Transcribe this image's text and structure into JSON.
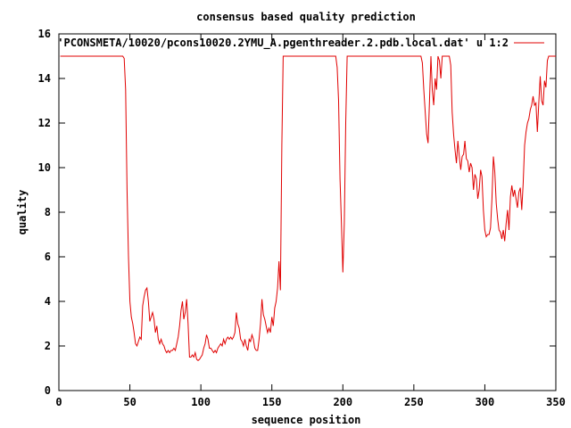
{
  "chart_data": {
    "type": "line",
    "title": "consensus based quality prediction",
    "xlabel": "sequence position",
    "ylabel": "quality",
    "xlim": [
      0,
      350
    ],
    "ylim": [
      0,
      16
    ],
    "x_ticks": [
      0,
      50,
      100,
      150,
      200,
      250,
      300,
      350
    ],
    "y_ticks": [
      0,
      2,
      4,
      6,
      8,
      10,
      12,
      14,
      16
    ],
    "x_tick_labels": [
      "0",
      "50",
      "100",
      "150",
      "200",
      "250",
      "300",
      "350"
    ],
    "y_tick_labels": [
      "0",
      "2",
      "4",
      "6",
      "8",
      "10",
      "12",
      "14",
      "16"
    ],
    "grid": false,
    "legend_position": "top-right",
    "series": [
      {
        "name": "'PCONSMETA/10020/pcons10020.2YMU_A.pgenthreader.2.pdb.local.dat' u 1:2",
        "color": "#e00000",
        "points": [
          [
            1,
            15
          ],
          [
            20,
            15
          ],
          [
            40,
            15
          ],
          [
            45,
            15
          ],
          [
            46,
            14.9
          ],
          [
            47,
            13.5
          ],
          [
            48,
            9
          ],
          [
            49,
            6
          ],
          [
            50,
            4
          ],
          [
            51,
            3.3
          ],
          [
            52,
            3
          ],
          [
            53,
            2.6
          ],
          [
            54,
            2.1
          ],
          [
            55,
            2
          ],
          [
            56,
            2.2
          ],
          [
            57,
            2.4
          ],
          [
            58,
            2.3
          ],
          [
            59,
            3.8
          ],
          [
            60,
            4.2
          ],
          [
            61,
            4.5
          ],
          [
            62,
            4.6
          ],
          [
            63,
            4
          ],
          [
            64,
            3.1
          ],
          [
            65,
            3.3
          ],
          [
            66,
            3.5
          ],
          [
            67,
            3.2
          ],
          [
            68,
            2.6
          ],
          [
            69,
            2.9
          ],
          [
            70,
            2.3
          ],
          [
            71,
            2.1
          ],
          [
            72,
            2.3
          ],
          [
            73,
            2.1
          ],
          [
            74,
            2.0
          ],
          [
            75,
            1.8
          ],
          [
            76,
            1.7
          ],
          [
            77,
            1.8
          ],
          [
            78,
            1.7
          ],
          [
            79,
            1.8
          ],
          [
            80,
            1.8
          ],
          [
            81,
            1.9
          ],
          [
            82,
            1.8
          ],
          [
            83,
            2.1
          ],
          [
            84,
            2.4
          ],
          [
            85,
            2.9
          ],
          [
            86,
            3.6
          ],
          [
            87,
            4.0
          ],
          [
            88,
            3.2
          ],
          [
            89,
            3.5
          ],
          [
            90,
            4.1
          ],
          [
            91,
            3.0
          ],
          [
            92,
            1.5
          ],
          [
            93,
            1.5
          ],
          [
            94,
            1.6
          ],
          [
            95,
            1.5
          ],
          [
            96,
            1.7
          ],
          [
            97,
            1.4
          ],
          [
            98,
            1.35
          ],
          [
            99,
            1.4
          ],
          [
            100,
            1.5
          ],
          [
            101,
            1.6
          ],
          [
            102,
            1.9
          ],
          [
            103,
            2.1
          ],
          [
            104,
            2.5
          ],
          [
            105,
            2.3
          ],
          [
            106,
            1.9
          ],
          [
            107,
            1.9
          ],
          [
            108,
            1.8
          ],
          [
            109,
            1.7
          ],
          [
            110,
            1.8
          ],
          [
            111,
            1.7
          ],
          [
            112,
            1.9
          ],
          [
            113,
            2.0
          ],
          [
            114,
            2.1
          ],
          [
            115,
            2.0
          ],
          [
            116,
            2.3
          ],
          [
            117,
            2.1
          ],
          [
            118,
            2.3
          ],
          [
            119,
            2.4
          ],
          [
            120,
            2.3
          ],
          [
            121,
            2.4
          ],
          [
            122,
            2.3
          ],
          [
            123,
            2.4
          ],
          [
            124,
            2.6
          ],
          [
            125,
            3.5
          ],
          [
            126,
            3.0
          ],
          [
            127,
            2.8
          ],
          [
            128,
            2.3
          ],
          [
            129,
            2.2
          ],
          [
            130,
            2.0
          ],
          [
            131,
            2.3
          ],
          [
            132,
            2.0
          ],
          [
            133,
            1.8
          ],
          [
            134,
            2.3
          ],
          [
            135,
            2.2
          ],
          [
            136,
            2.5
          ],
          [
            137,
            2.3
          ],
          [
            138,
            1.9
          ],
          [
            139,
            1.8
          ],
          [
            140,
            1.8
          ],
          [
            141,
            2.3
          ],
          [
            142,
            3.0
          ],
          [
            143,
            4.1
          ],
          [
            144,
            3.4
          ],
          [
            145,
            3.2
          ],
          [
            146,
            2.9
          ],
          [
            147,
            2.6
          ],
          [
            148,
            2.8
          ],
          [
            149,
            2.6
          ],
          [
            150,
            3.3
          ],
          [
            151,
            2.9
          ],
          [
            152,
            3.7
          ],
          [
            153,
            4.0
          ],
          [
            154,
            4.6
          ],
          [
            155,
            5.8
          ],
          [
            156,
            4.5
          ],
          [
            157,
            11
          ],
          [
            158,
            15
          ],
          [
            159,
            15
          ],
          [
            170,
            15
          ],
          [
            180,
            15
          ],
          [
            195,
            15
          ],
          [
            196,
            14.5
          ],
          [
            197,
            13
          ],
          [
            198,
            9.5
          ],
          [
            199,
            7.5
          ],
          [
            200,
            5.3
          ],
          [
            201,
            7.5
          ],
          [
            202,
            12
          ],
          [
            203,
            15
          ],
          [
            205,
            15
          ],
          [
            220,
            15
          ],
          [
            240,
            15
          ],
          [
            255,
            15
          ],
          [
            256,
            14.7
          ],
          [
            257,
            13.5
          ],
          [
            258,
            12.5
          ],
          [
            259,
            11.5
          ],
          [
            260,
            11.1
          ],
          [
            261,
            13
          ],
          [
            262,
            15
          ],
          [
            263,
            13.5
          ],
          [
            264,
            12.8
          ],
          [
            265,
            14
          ],
          [
            266,
            13.5
          ],
          [
            267,
            15
          ],
          [
            268,
            14.8
          ],
          [
            269,
            14
          ],
          [
            270,
            15
          ],
          [
            275,
            15
          ],
          [
            276,
            14.6
          ],
          [
            277,
            12.5
          ],
          [
            278,
            11.5
          ],
          [
            279,
            10.8
          ],
          [
            280,
            10.2
          ],
          [
            281,
            11.2
          ],
          [
            282,
            10.5
          ],
          [
            283,
            9.9
          ],
          [
            284,
            10.5
          ],
          [
            285,
            10.6
          ],
          [
            286,
            11.2
          ],
          [
            287,
            10.4
          ],
          [
            288,
            10.3
          ],
          [
            289,
            9.8
          ],
          [
            290,
            10.2
          ],
          [
            291,
            10.0
          ],
          [
            292,
            9.0
          ],
          [
            293,
            9.7
          ],
          [
            294,
            9.5
          ],
          [
            295,
            8.6
          ],
          [
            296,
            9.0
          ],
          [
            297,
            9.9
          ],
          [
            298,
            9.6
          ],
          [
            299,
            8.1
          ],
          [
            300,
            7.2
          ],
          [
            301,
            6.9
          ],
          [
            302,
            7.0
          ],
          [
            303,
            7.0
          ],
          [
            304,
            7.3
          ],
          [
            305,
            8.6
          ],
          [
            306,
            10.5
          ],
          [
            307,
            9.8
          ],
          [
            308,
            8.4
          ],
          [
            309,
            7.7
          ],
          [
            310,
            7.2
          ],
          [
            311,
            7.1
          ],
          [
            312,
            6.8
          ],
          [
            313,
            7.2
          ],
          [
            314,
            6.7
          ],
          [
            315,
            7.5
          ],
          [
            316,
            8.1
          ],
          [
            317,
            7.2
          ],
          [
            318,
            8.7
          ],
          [
            319,
            9.2
          ],
          [
            320,
            8.7
          ],
          [
            321,
            9.0
          ],
          [
            322,
            8.6
          ],
          [
            323,
            8.2
          ],
          [
            324,
            8.9
          ],
          [
            325,
            9.1
          ],
          [
            326,
            8.1
          ],
          [
            327,
            9.3
          ],
          [
            328,
            11.0
          ],
          [
            329,
            11.6
          ],
          [
            330,
            12.0
          ],
          [
            331,
            12.2
          ],
          [
            332,
            12.6
          ],
          [
            333,
            12.8
          ],
          [
            334,
            13.2
          ],
          [
            335,
            12.8
          ],
          [
            336,
            12.9
          ],
          [
            337,
            11.6
          ],
          [
            338,
            12.9
          ],
          [
            339,
            14.1
          ],
          [
            340,
            13.0
          ],
          [
            341,
            12.8
          ],
          [
            342,
            13.9
          ],
          [
            343,
            13.6
          ],
          [
            344,
            14.8
          ],
          [
            345,
            15
          ],
          [
            350,
            15
          ]
        ]
      }
    ]
  }
}
